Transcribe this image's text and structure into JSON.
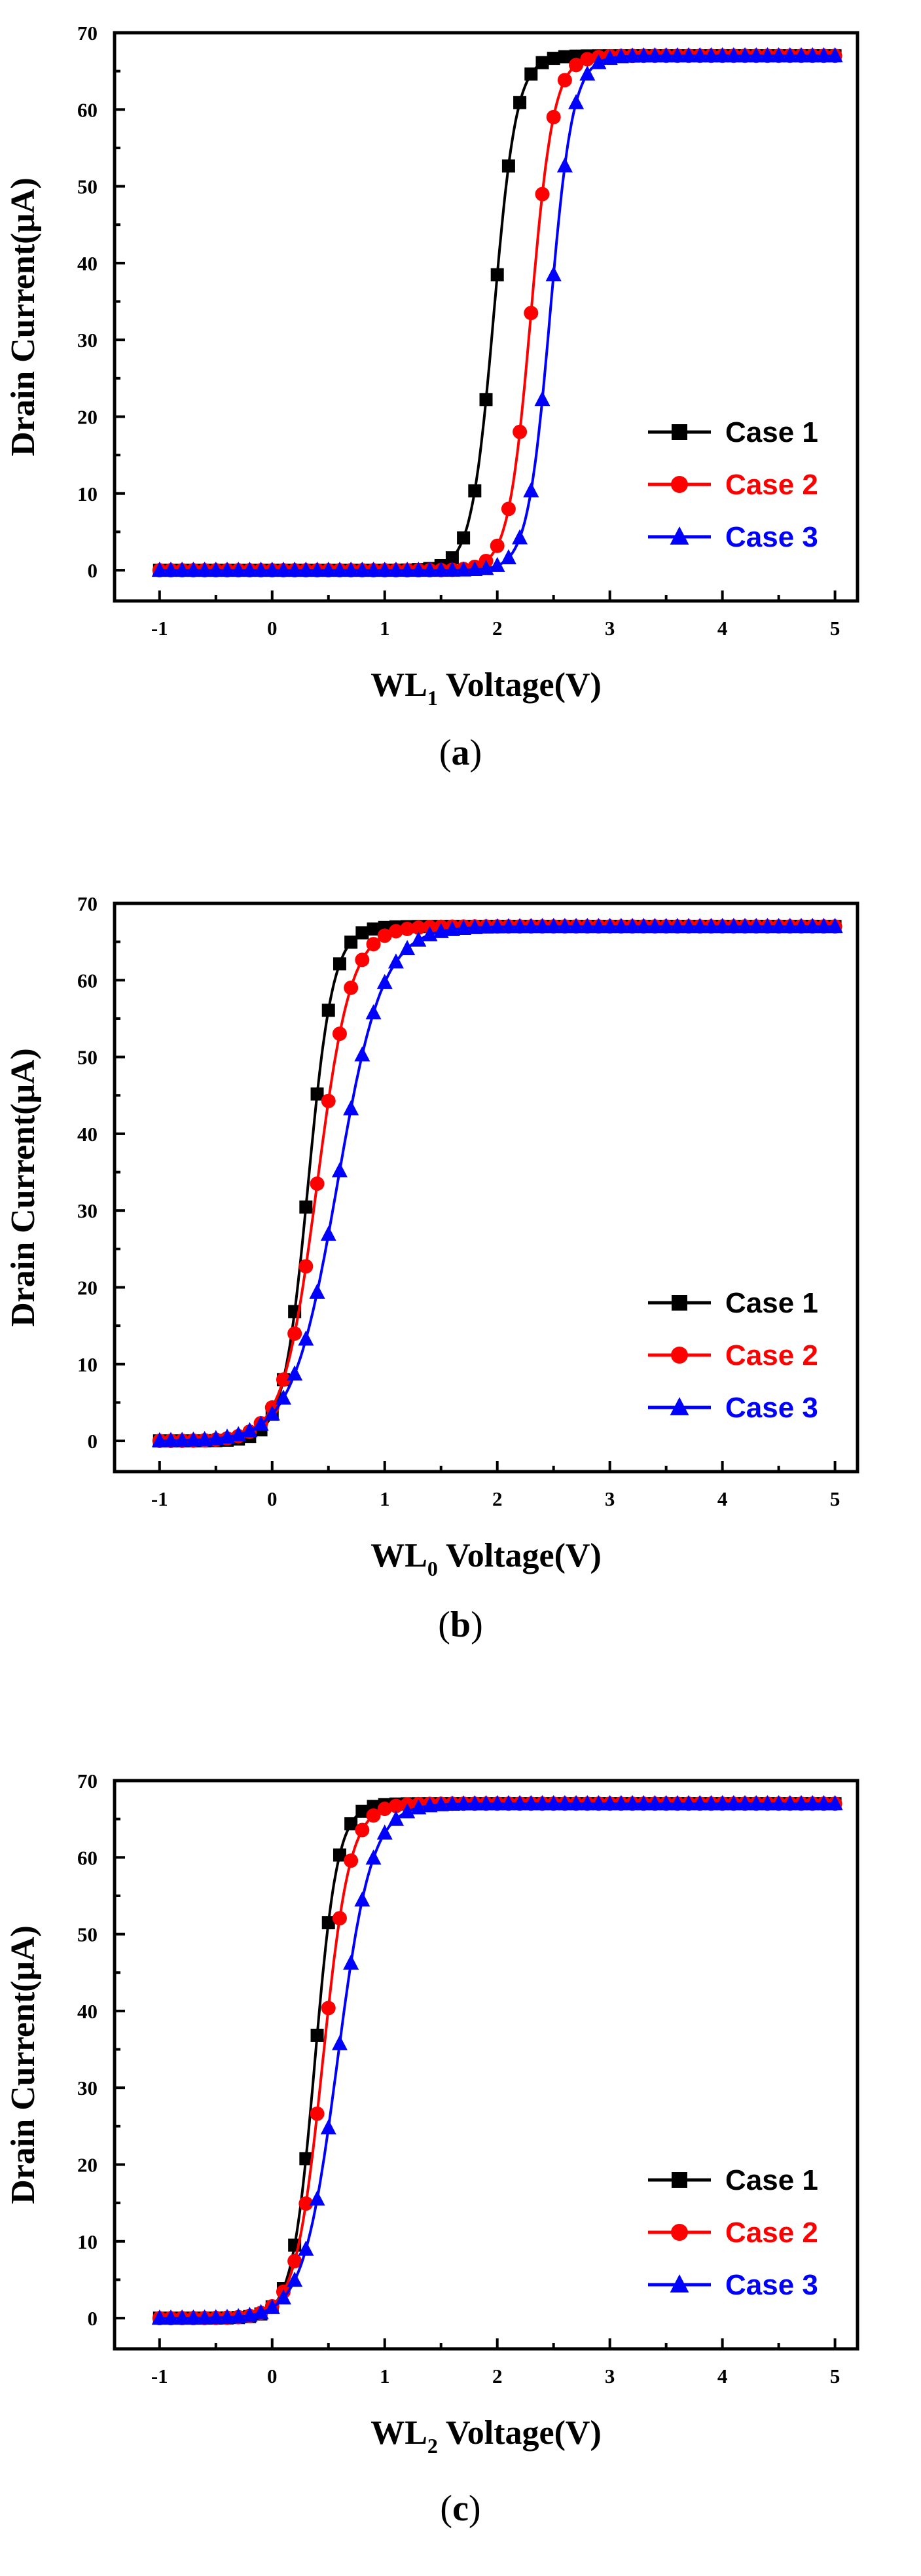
{
  "figure": {
    "panels": [
      {
        "caption_letter": "a",
        "xlabel_main": "WL",
        "xlabel_sub": "1",
        "xlabel_rest": " Voltage(V)"
      },
      {
        "caption_letter": "b",
        "xlabel_main": "WL",
        "xlabel_sub": "0",
        "xlabel_rest": " Voltage(V)"
      },
      {
        "caption_letter": "c",
        "xlabel_main": "WL",
        "xlabel_sub": "2",
        "xlabel_rest": " Voltage(V)"
      }
    ]
  },
  "chart_data": [
    {
      "type": "line",
      "title": "",
      "xlabel": "WL1 Voltage(V)",
      "ylabel": "Drain Current(μA)",
      "xlim": [
        -1.4,
        5.2
      ],
      "ylim": [
        -4,
        70
      ],
      "xticks": [
        -1,
        0,
        1,
        2,
        3,
        4,
        5
      ],
      "yticks": [
        0,
        10,
        20,
        30,
        40,
        50,
        60,
        70
      ],
      "legend_position": "bottom-right",
      "series": [
        {
          "name": "Case 1",
          "color": "#000000",
          "marker": "square",
          "vth": 1.97,
          "width": 0.1,
          "sat": 67
        },
        {
          "name": "Case 2",
          "color": "#ff0000",
          "marker": "circle",
          "vth": 2.3,
          "width": 0.1,
          "sat": 67
        },
        {
          "name": "Case 3",
          "color": "#0000ff",
          "marker": "triangle",
          "vth": 2.47,
          "width": 0.1,
          "sat": 67
        }
      ]
    },
    {
      "type": "line",
      "title": "",
      "xlabel": "WL0 Voltage(V)",
      "ylabel": "Drain Current(μA)",
      "xlim": [
        -1.4,
        5.2
      ],
      "ylim": [
        -4,
        70
      ],
      "xticks": [
        -1,
        0,
        1,
        2,
        3,
        4,
        5
      ],
      "yticks": [
        0,
        10,
        20,
        30,
        40,
        50,
        60,
        70
      ],
      "legend_position": "bottom-right",
      "series": [
        {
          "name": "Case 1",
          "color": "#000000",
          "marker": "square",
          "vth": 0.32,
          "width": 0.11,
          "sat": 67
        },
        {
          "name": "Case 2",
          "color": "#ff0000",
          "marker": "circle",
          "vth": 0.4,
          "width": 0.15,
          "sat": 67
        },
        {
          "name": "Case 3",
          "color": "#0000ff",
          "marker": "triangle",
          "vth": 0.58,
          "width": 0.2,
          "sat": 67
        }
      ]
    },
    {
      "type": "line",
      "title": "",
      "xlabel": "WL2 Voltage(V)",
      "ylabel": "Drain Current(μA)",
      "xlim": [
        -1.4,
        5.2
      ],
      "ylim": [
        -4,
        70
      ],
      "xticks": [
        -1,
        0,
        1,
        2,
        3,
        4,
        5
      ],
      "yticks": [
        0,
        10,
        20,
        30,
        40,
        50,
        60,
        70
      ],
      "legend_position": "bottom-right",
      "series": [
        {
          "name": "Case 1",
          "color": "#000000",
          "marker": "square",
          "vth": 0.38,
          "width": 0.1,
          "sat": 67
        },
        {
          "name": "Case 2",
          "color": "#ff0000",
          "marker": "circle",
          "vth": 0.45,
          "width": 0.12,
          "sat": 67
        },
        {
          "name": "Case 3",
          "color": "#0000ff",
          "marker": "triangle",
          "vth": 0.58,
          "width": 0.15,
          "sat": 67
        }
      ]
    }
  ]
}
